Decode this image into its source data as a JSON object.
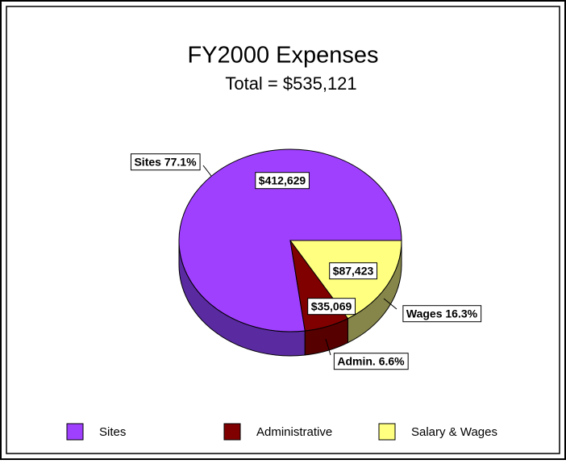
{
  "chart_data": {
    "type": "pie",
    "title": "FY2000 Expenses",
    "subtitle": "Total = $535,121",
    "categories": [
      "Sites",
      "Administrative",
      "Salary & Wages"
    ],
    "values": [
      412629,
      35069,
      87423
    ],
    "value_labels": [
      "$412,629",
      "$35,069",
      "$87,423"
    ],
    "slice_labels": [
      "Sites 77.1%",
      "Admin. 6.6%",
      "Wages 16.3%"
    ],
    "colors": [
      "#a040ff",
      "#800000",
      "#ffff80"
    ],
    "side_colors": [
      "#5a2aa0",
      "#560000",
      "#86864a"
    ],
    "legend": "bottom"
  }
}
